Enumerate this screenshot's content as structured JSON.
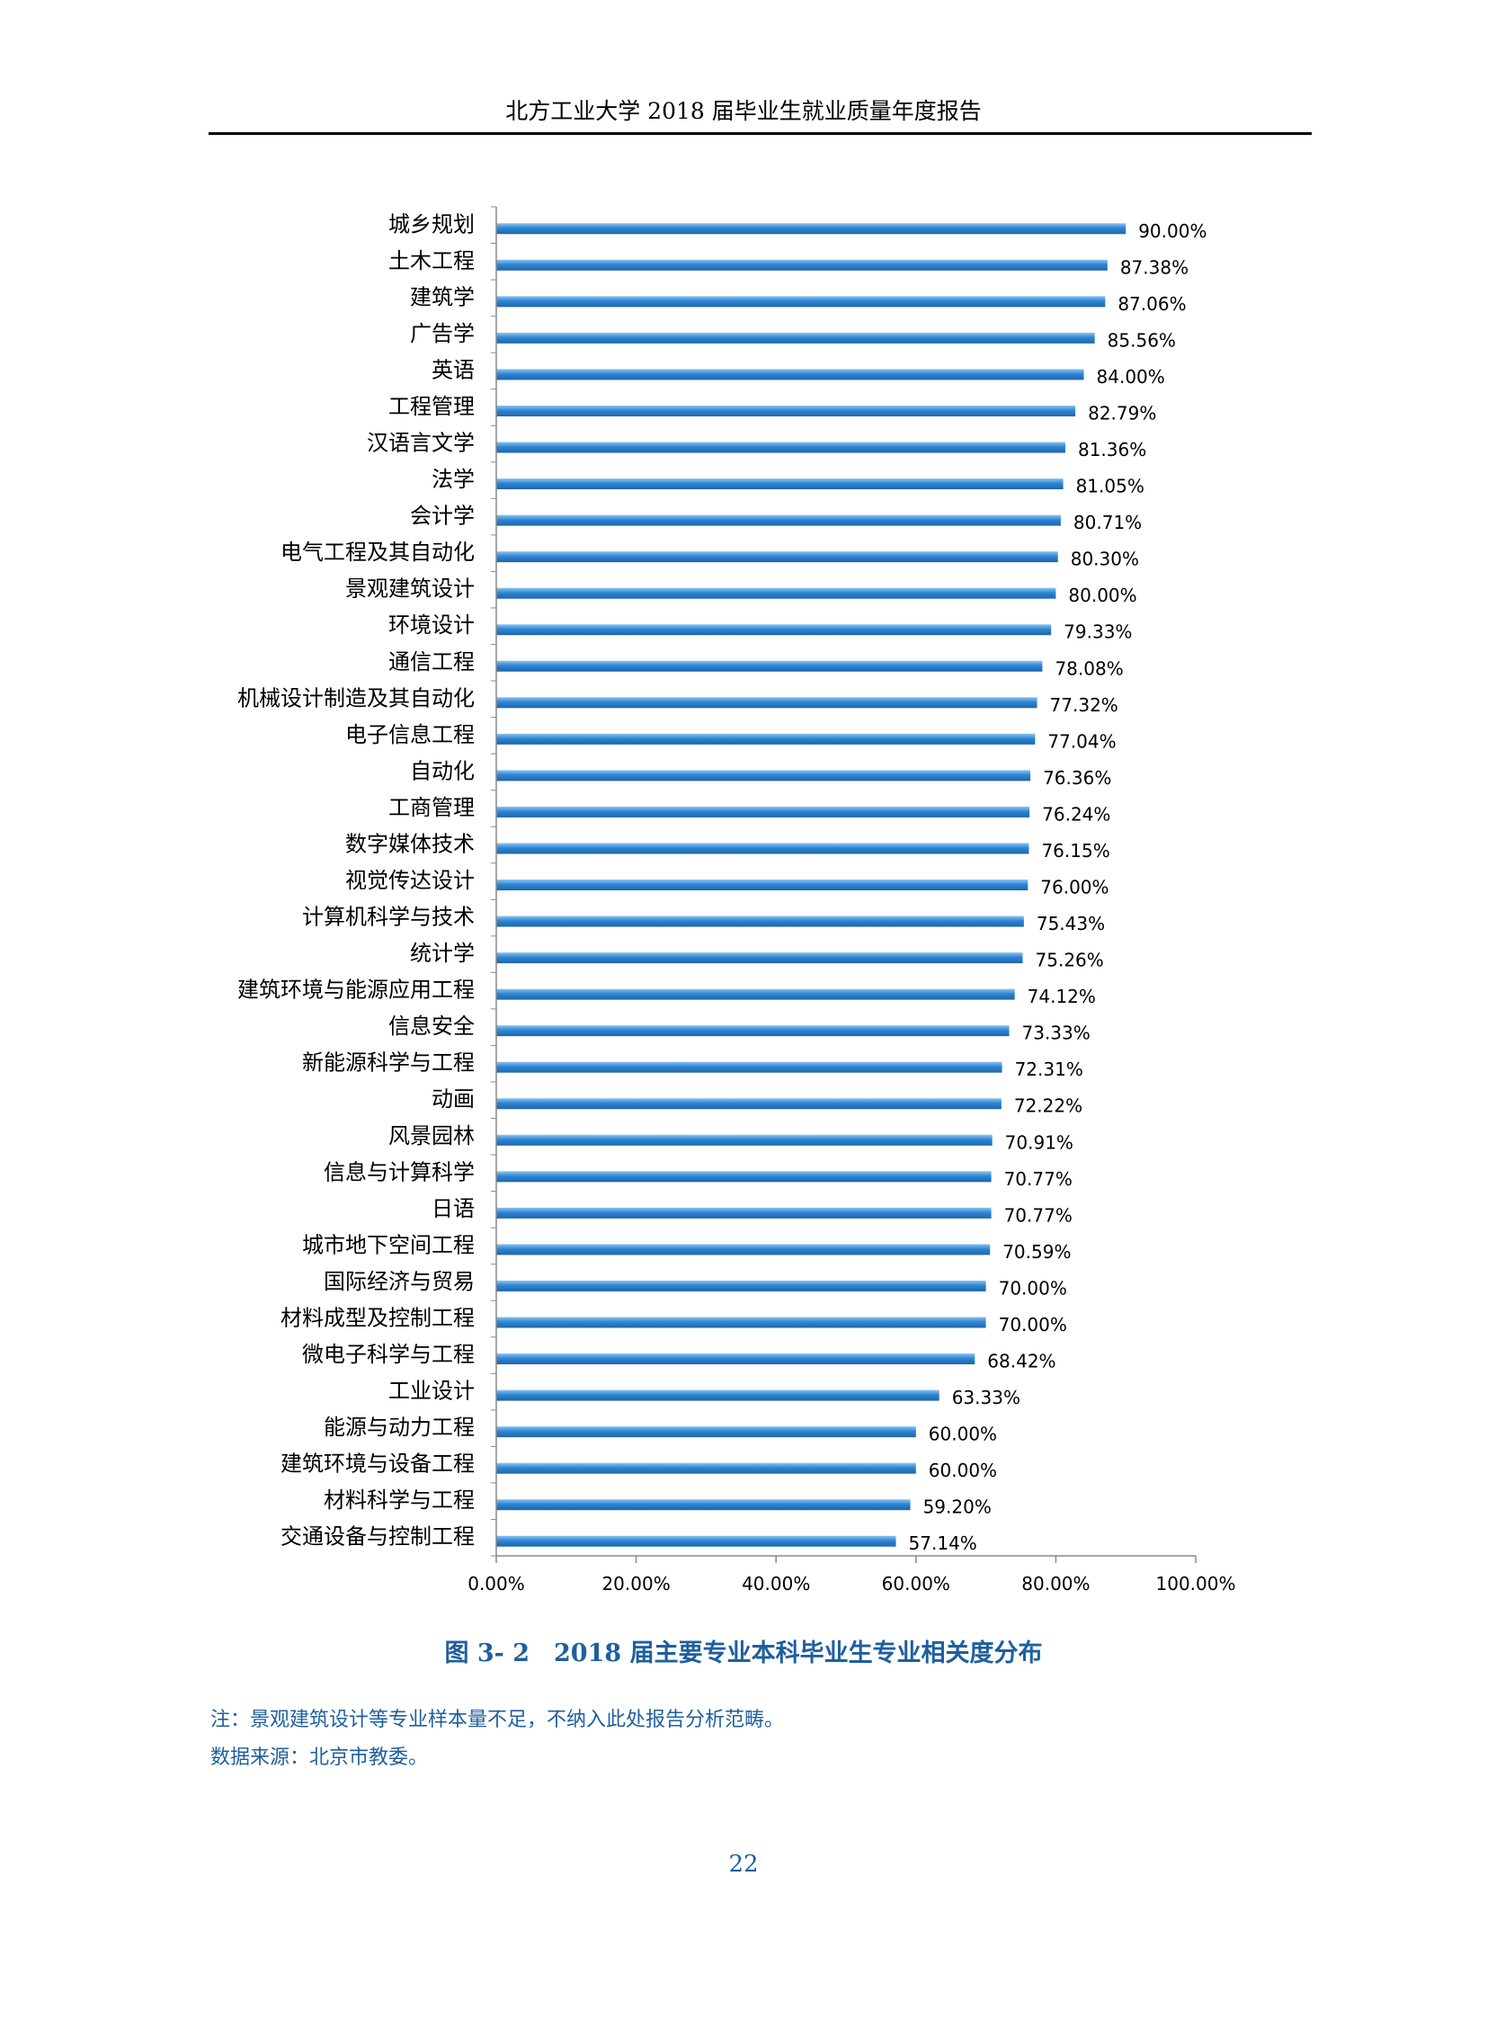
{
  "header": {
    "title": "北方工业大学 2018 届毕业生就业质量年度报告"
  },
  "chart_data": {
    "type": "bar",
    "orientation": "horizontal",
    "categories": [
      "城乡规划",
      "土木工程",
      "建筑学",
      "广告学",
      "英语",
      "工程管理",
      "汉语言文学",
      "法学",
      "会计学",
      "电气工程及其自动化",
      "景观建筑设计",
      "环境设计",
      "通信工程",
      "机械设计制造及其自动化",
      "电子信息工程",
      "自动化",
      "工商管理",
      "数字媒体技术",
      "视觉传达设计",
      "计算机科学与技术",
      "统计学",
      "建筑环境与能源应用工程",
      "信息安全",
      "新能源科学与工程",
      "动画",
      "风景园林",
      "信息与计算科学",
      "日语",
      "城市地下空间工程",
      "国际经济与贸易",
      "材料成型及控制工程",
      "微电子科学与工程",
      "工业设计",
      "能源与动力工程",
      "建筑环境与设备工程",
      "材料科学与工程",
      "交通设备与控制工程"
    ],
    "values": [
      90.0,
      87.38,
      87.06,
      85.56,
      84.0,
      82.79,
      81.36,
      81.05,
      80.71,
      80.3,
      80.0,
      79.33,
      78.08,
      77.32,
      77.04,
      76.36,
      76.24,
      76.15,
      76.0,
      75.43,
      75.26,
      74.12,
      73.33,
      72.31,
      72.22,
      70.91,
      70.77,
      70.77,
      70.59,
      70.0,
      70.0,
      68.42,
      63.33,
      60.0,
      60.0,
      59.2,
      57.14
    ],
    "value_labels": [
      "90.00%",
      "87.38%",
      "87.06%",
      "85.56%",
      "84.00%",
      "82.79%",
      "81.36%",
      "81.05%",
      "80.71%",
      "80.30%",
      "80.00%",
      "79.33%",
      "78.08%",
      "77.32%",
      "77.04%",
      "76.36%",
      "76.24%",
      "76.15%",
      "76.00%",
      "75.43%",
      "75.26%",
      "74.12%",
      "73.33%",
      "72.31%",
      "72.22%",
      "70.91%",
      "70.77%",
      "70.77%",
      "70.59%",
      "70.00%",
      "70.00%",
      "68.42%",
      "63.33%",
      "60.00%",
      "60.00%",
      "59.20%",
      "57.14%"
    ],
    "xlim": [
      0,
      100
    ],
    "xticks": [
      0,
      20,
      40,
      60,
      80,
      100
    ],
    "xtick_labels": [
      "0.00%",
      "20.00%",
      "40.00%",
      "60.00%",
      "80.00%",
      "100.00%"
    ],
    "grid": false,
    "legend": false,
    "bar_color": "#2e86d4"
  },
  "caption": "图 3- 2　2018 届主要专业本科毕业生专业相关度分布",
  "notes": {
    "note": "注：景观建筑设计等专业样本量不足，不纳入此处报告分析范畴。",
    "source": "数据来源：北京市教委。"
  },
  "page_number": "22"
}
